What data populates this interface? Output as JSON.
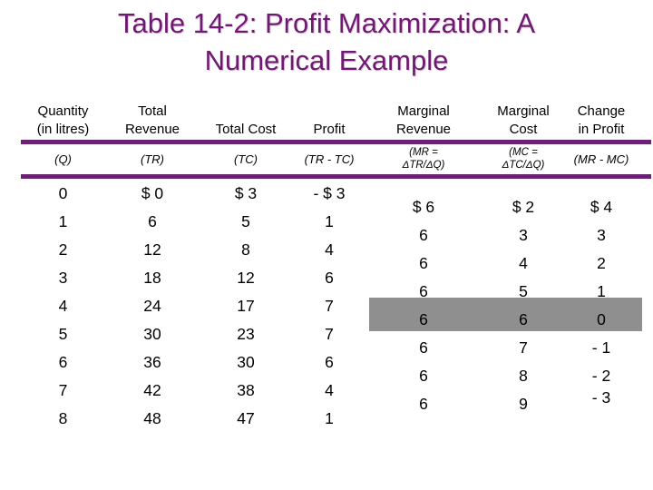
{
  "title": {
    "line1": "Table 14-2: Profit Maximization: A",
    "line2": "Numerical Example"
  },
  "colors": {
    "title_purple": "#6d1a70",
    "rule_purple": "#6b2173",
    "highlight_gray": "#8f8f8f"
  },
  "table": {
    "highlight_note": "gray bar marks profit-maximizing marginal row (MR = MC = 6, change in profit = 0)",
    "columns": [
      {
        "id": "quantity",
        "header": "Quantity\n(in litres)",
        "formula": "(Q)",
        "values": [
          "0",
          "1",
          "2",
          "3",
          "4",
          "5",
          "6",
          "7",
          "8"
        ]
      },
      {
        "id": "total-revenue",
        "header": "Total\nRevenue",
        "formula": "(TR)",
        "values": [
          "$ 0",
          "6",
          "12",
          "18",
          "24",
          "30",
          "36",
          "42",
          "48"
        ]
      },
      {
        "id": "total-cost",
        "header": "Total Cost",
        "formula": "(TC)",
        "values": [
          "$ 3",
          "5",
          "8",
          "12",
          "17",
          "23",
          "30",
          "38",
          "47"
        ]
      },
      {
        "id": "profit",
        "header": "Profit",
        "formula": "(TR - TC)",
        "values": [
          "- $ 3",
          "1",
          "4",
          "6",
          "7",
          "7",
          "6",
          "4",
          "1"
        ]
      },
      {
        "id": "marginal-revenue",
        "header": "Marginal\nRevenue",
        "formula": "(MR =\nΔTR/ΔQ)",
        "values": [
          "$ 6",
          "6",
          "6",
          "6",
          "6",
          "6",
          "6",
          "6"
        ]
      },
      {
        "id": "marginal-cost",
        "header": "Marginal\nCost",
        "formula": "(MC =\nΔTC/ΔQ)",
        "values": [
          "$ 2",
          "3",
          "4",
          "5",
          "6",
          "7",
          "8",
          "9"
        ]
      },
      {
        "id": "change-in-profit",
        "header": "Change\nin Profit",
        "formula": "(MR - MC)",
        "values": [
          "$ 4",
          "3",
          "2",
          "1",
          "0",
          "- 1",
          "- 2",
          "- 3"
        ]
      }
    ]
  }
}
